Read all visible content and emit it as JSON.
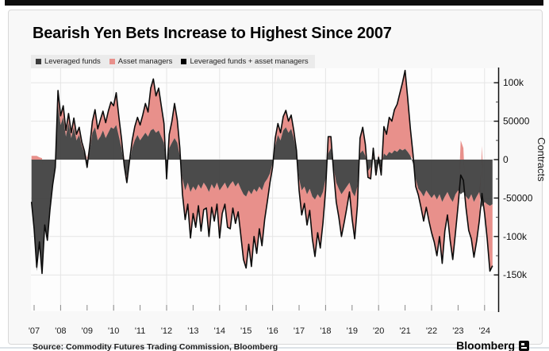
{
  "header": {
    "title": "Bearish Yen Bets Increase to Highest Since 2007"
  },
  "legend": [
    {
      "label": "Leveraged funds",
      "color": "#3d3d3d"
    },
    {
      "label": "Asset managers",
      "color": "#e8908b"
    },
    {
      "label": "Leveraged funds + asset managers",
      "color": "#000000"
    }
  ],
  "y_axis": {
    "title": "Contracts",
    "ticks": [
      {
        "v": 100,
        "label": "100k"
      },
      {
        "v": 50,
        "label": "50000"
      },
      {
        "v": 0,
        "label": "0"
      },
      {
        "v": -50,
        "label": "-50000"
      },
      {
        "v": -100,
        "label": "-100k"
      },
      {
        "v": -150,
        "label": "-150k"
      }
    ],
    "minor_ticks": [
      75,
      25,
      -25,
      -75,
      -125
    ]
  },
  "x_axis": {
    "labels": [
      "'07",
      "'08",
      "'09",
      "'10",
      "'11",
      "'12",
      "'13",
      "'14",
      "'15",
      "'16",
      "'17",
      "'18",
      "'19",
      "'20",
      "'21",
      "'22",
      "'23",
      "'24"
    ],
    "years": [
      2007,
      2008,
      2009,
      2010,
      2011,
      2012,
      2013,
      2014,
      2015,
      2016,
      2017,
      2018,
      2019,
      2020,
      2021,
      2022,
      2023,
      2024
    ]
  },
  "footer": {
    "source": "Source: Commodity Futures Trading Commission, Bloomberg",
    "brand": "Bloomberg"
  },
  "colors": {
    "leveraged_fill": "#414141",
    "asset_fill": "#e8908b",
    "total_line": "#0c0c0c",
    "grid": "#e5e5e5",
    "axis": "#111111",
    "plot_bg": "#fdfdfd"
  },
  "chart_data": {
    "type": "area",
    "subtype": "diverging stacked areas with total line",
    "unit": "contracts, thousands (net futures positions in yen)",
    "x_start": 2006.9,
    "x_step": 0.1,
    "ylim": [
      -169,
      118
    ],
    "grid": "horizontal every 50k, vertical every 2 years",
    "legend_position": "top-left",
    "series": [
      {
        "name": "Leveraged funds",
        "color": "#3d3d3d",
        "render": "area",
        "values": [
          -60,
          -95,
          -145,
          -110,
          -150,
          -85,
          -100,
          -60,
          -30,
          -12,
          70,
          45,
          55,
          30,
          48,
          28,
          42,
          25,
          32,
          18,
          8,
          -12,
          12,
          35,
          42,
          25,
          30,
          38,
          28,
          35,
          42,
          40,
          45,
          30,
          15,
          -10,
          -22,
          -5,
          15,
          25,
          32,
          25,
          30,
          35,
          30,
          38,
          40,
          35,
          38,
          30,
          22,
          -15,
          15,
          22,
          28,
          22,
          5,
          -25,
          -40,
          -30,
          -42,
          -35,
          -40,
          -32,
          -38,
          -30,
          -35,
          -42,
          -32,
          -38,
          -30,
          -40,
          -35,
          -30,
          -38,
          -32,
          -28,
          -35,
          -30,
          -38,
          -45,
          -48,
          -40,
          -45,
          -38,
          -42,
          -35,
          -40,
          -30,
          -25,
          -18,
          -5,
          18,
          32,
          25,
          38,
          42,
          35,
          40,
          28,
          10,
          -25,
          -40,
          -35,
          -45,
          -38,
          -48,
          -52,
          -45,
          -50,
          -42,
          -25,
          8,
          15,
          -10,
          -30,
          -38,
          -45,
          -40,
          -35,
          -30,
          -42,
          -48,
          -35,
          8,
          12,
          5,
          -15,
          -10,
          5,
          -12,
          -5,
          -10,
          8,
          5,
          10,
          8,
          12,
          10,
          14,
          12,
          14,
          10,
          5,
          -5,
          -25,
          -38,
          -42,
          -48,
          -40,
          -45,
          -50,
          -45,
          -52,
          -45,
          -55,
          -48,
          -42,
          -50,
          -55,
          -45,
          -40,
          -45,
          -42,
          -48,
          -52,
          -45,
          -55,
          -48,
          -42,
          -62,
          -55,
          -58,
          -60,
          -58
        ]
      },
      {
        "name": "Asset managers",
        "color": "#e8908b",
        "render": "area",
        "values": [
          5,
          5,
          5,
          3,
          2,
          0,
          -5,
          -5,
          -3,
          2,
          20,
          12,
          15,
          8,
          12,
          7,
          12,
          8,
          10,
          5,
          3,
          2,
          6,
          15,
          23,
          15,
          22,
          25,
          20,
          28,
          33,
          30,
          42,
          25,
          12,
          2,
          -8,
          3,
          10,
          18,
          23,
          20,
          28,
          38,
          32,
          55,
          65,
          48,
          55,
          40,
          25,
          -10,
          18,
          28,
          45,
          30,
          10,
          -20,
          -38,
          -28,
          -60,
          -35,
          -48,
          -28,
          -55,
          -35,
          -28,
          -58,
          -30,
          -42,
          -28,
          -62,
          -35,
          -28,
          -50,
          -58,
          -35,
          -48,
          -38,
          -60,
          -85,
          -93,
          -70,
          -94,
          -62,
          -80,
          -55,
          -72,
          -48,
          -30,
          -12,
          -5,
          10,
          15,
          10,
          18,
          22,
          15,
          18,
          10,
          2,
          -15,
          -32,
          -22,
          -40,
          -28,
          -55,
          -74,
          -50,
          -65,
          -40,
          -15,
          22,
          15,
          -5,
          -25,
          -37,
          -55,
          -42,
          -28,
          -12,
          -35,
          -55,
          -25,
          20,
          30,
          15,
          -8,
          -15,
          10,
          -8,
          8,
          -10,
          35,
          28,
          45,
          42,
          53,
          62,
          72,
          88,
          102,
          70,
          35,
          12,
          -10,
          -8,
          -20,
          -32,
          -22,
          -35,
          -45,
          -62,
          -73,
          -55,
          -80,
          -45,
          -30,
          -55,
          -75,
          -50,
          -20,
          25,
          15,
          -15,
          -40,
          -58,
          -72,
          -58,
          -38,
          18,
          -15,
          -45,
          -85,
          -80
        ]
      },
      {
        "name": "Leveraged funds + asset managers",
        "color": "#000000",
        "render": "line",
        "derived": "sum of the two area series"
      }
    ]
  }
}
